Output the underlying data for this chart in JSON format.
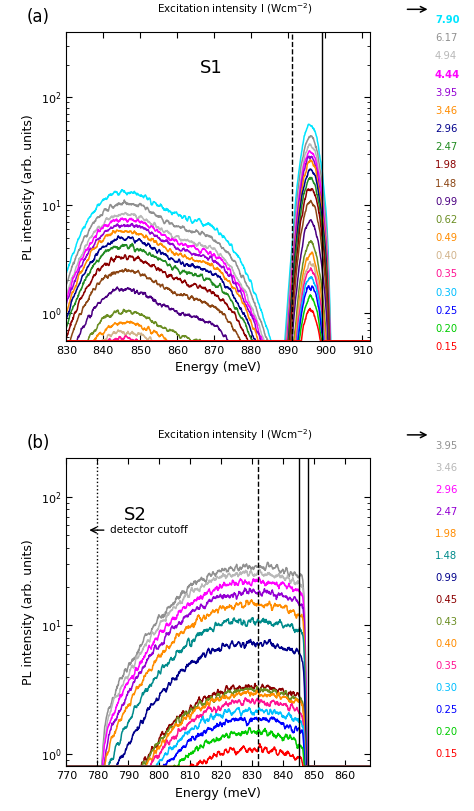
{
  "panel_a": {
    "label": "(a)",
    "sample": "S1",
    "xlabel": "Energy (meV)",
    "ylabel": "PL intensity (arb. units)",
    "xlim": [
      830,
      912
    ],
    "ylim": [
      0.55,
      400
    ],
    "xticks": [
      830,
      840,
      850,
      860,
      870,
      880,
      890,
      900,
      910
    ],
    "vline_solid": 899,
    "vline_dashed": 891,
    "s1_intensities": [
      7.9,
      6.17,
      4.94,
      4.44,
      3.95,
      3.46,
      2.96,
      2.47,
      1.98,
      1.48,
      0.99,
      0.62,
      0.49,
      0.4,
      0.35,
      0.3,
      0.25,
      0.2,
      0.15
    ],
    "s1_labels": [
      "7.90",
      "6.17",
      "4.94",
      "4.44",
      "3.95",
      "3.46",
      "2.96",
      "2.47",
      "1.98",
      "1.48",
      "0.99",
      "0.62",
      "0.49",
      "0.40",
      "0.35",
      "0.30",
      "0.25",
      "0.20",
      "0.15"
    ],
    "s1_colors": [
      "#00e5ff",
      "#909090",
      "#b8b8b8",
      "#ff00ff",
      "#9400d3",
      "#ff8c00",
      "#00008b",
      "#228b22",
      "#8b0000",
      "#8b4513",
      "#4b0082",
      "#6b8e23",
      "#ff8c00",
      "#d2b48c",
      "#ff1493",
      "#00bfff",
      "#0000ff",
      "#00cc00",
      "#ff0000"
    ],
    "s1_bold": [
      true,
      false,
      false,
      true,
      false,
      false,
      false,
      false,
      false,
      false,
      false,
      false,
      false,
      false,
      false,
      false,
      false,
      false,
      false
    ]
  },
  "panel_b": {
    "label": "(b)",
    "sample": "S2",
    "xlabel": "Energy (meV)",
    "ylabel": "PL intensity (arb. units)",
    "xlim": [
      770,
      868
    ],
    "ylim": [
      0.8,
      200
    ],
    "xticks": [
      770,
      780,
      790,
      800,
      810,
      820,
      830,
      840,
      850,
      860
    ],
    "vline_solid1": 845,
    "vline_solid2": 848,
    "vline_dashed": 832,
    "vline_dotted": 780,
    "s2_intensities": [
      3.95,
      3.46,
      2.96,
      2.47,
      1.98,
      1.48,
      0.99,
      0.45,
      0.43,
      0.4,
      0.35,
      0.3,
      0.25,
      0.2,
      0.15
    ],
    "s2_labels": [
      "3.95",
      "3.46",
      "2.96",
      "2.47",
      "1.98",
      "1.48",
      "0.99",
      "0.45",
      "0.43",
      "0.40",
      "0.35",
      "0.30",
      "0.25",
      "0.20",
      "0.15"
    ],
    "s2_colors": [
      "#909090",
      "#b8b8b8",
      "#ff00ff",
      "#9400d3",
      "#ff8c00",
      "#008b8b",
      "#00008b",
      "#8b0000",
      "#6b8e23",
      "#ff8c00",
      "#ff1493",
      "#00bfff",
      "#0000ff",
      "#00cc00",
      "#ff0000"
    ]
  }
}
